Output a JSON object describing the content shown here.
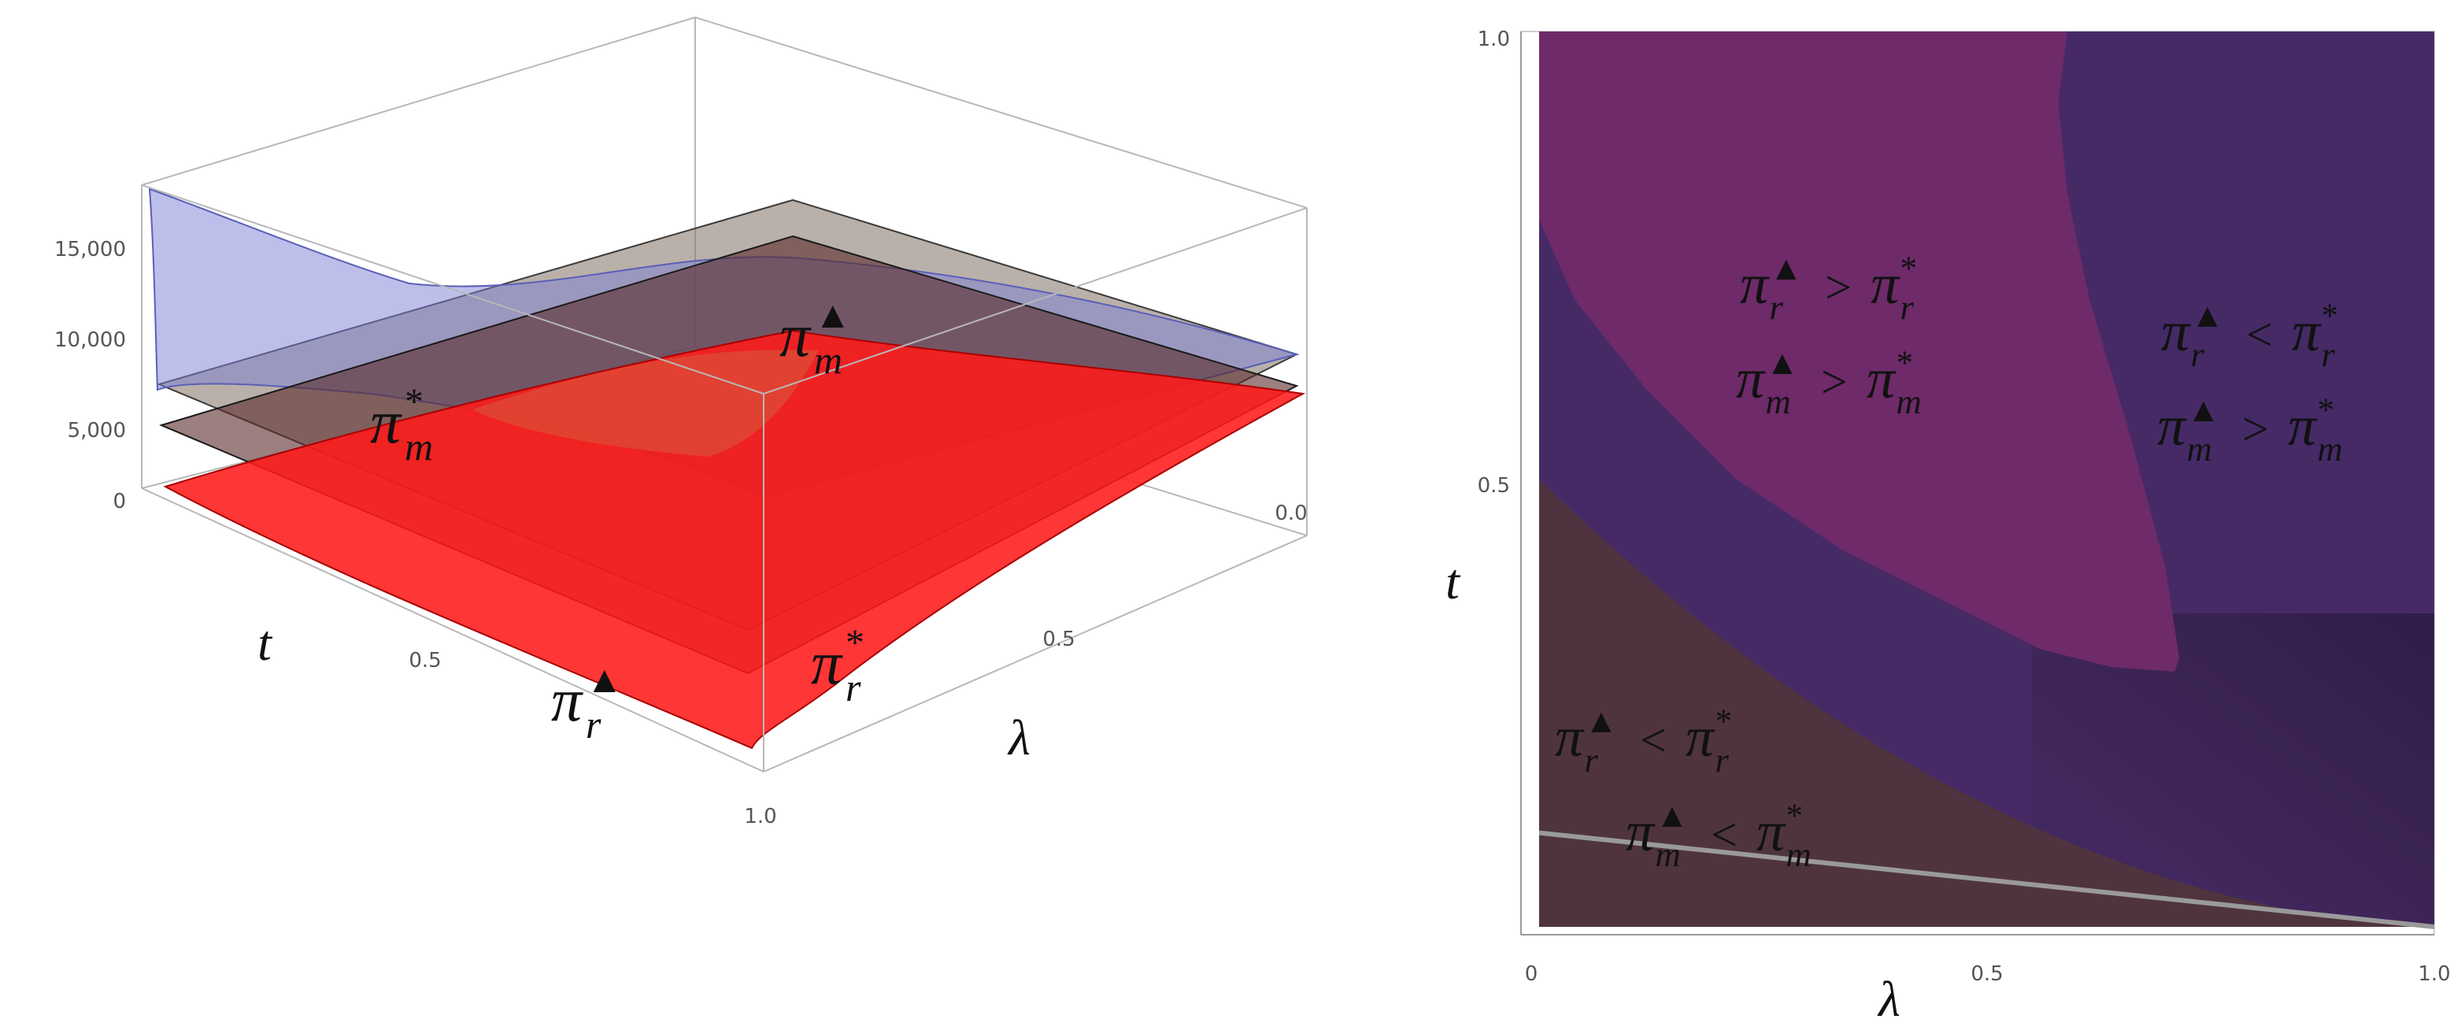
{
  "chart_data": [
    {
      "type": "3d-surface",
      "z_ticks": [
        "0",
        "5,000",
        "10,000",
        "15,000"
      ],
      "t_ticks": [
        "0.5"
      ],
      "lambda_ticks": [
        "0.0",
        "0.5",
        "1.0"
      ],
      "xlabel": "t",
      "ylabel": "λ",
      "surfaces": [
        {
          "name": "π_m^▲",
          "label_base": "π",
          "label_sub": "m",
          "label_sup": "▲",
          "color": "#7b7fd6"
        },
        {
          "name": "π_m^*",
          "label_base": "π",
          "label_sub": "m",
          "label_sup": "*",
          "color": "#7f6f62"
        },
        {
          "name": "π_r^*",
          "label_base": "π",
          "label_sub": "r",
          "label_sup": "*",
          "color": "#5a2a2a"
        },
        {
          "name": "π_r^▲",
          "label_base": "π",
          "label_sub": "r",
          "label_sup": "▲",
          "color": "#ff1a1a"
        }
      ]
    },
    {
      "type": "region",
      "xlabel": "λ",
      "ylabel": "t",
      "xlim": [
        0,
        1
      ],
      "ylim": [
        0,
        1
      ],
      "x_ticks": [
        "0",
        "0.5",
        "1.0"
      ],
      "y_ticks": [
        "0.5",
        "1.0"
      ],
      "colors": {
        "pink_region": "#6e2a69",
        "purple_region": "#452a66",
        "brown_region": "#4f343f",
        "boundary_line": "#9a9a9a"
      },
      "regions": [
        {
          "name": "top-left",
          "line1": {
            "a_base": "π",
            "a_sub": "r",
            "a_sup": "▲",
            "op": ">",
            "b_base": "π",
            "b_sub": "r",
            "b_sup": "*"
          },
          "line2": {
            "a_base": "π",
            "a_sub": "m",
            "a_sup": "▲",
            "op": ">",
            "b_base": "π",
            "b_sub": "m",
            "b_sup": "*"
          }
        },
        {
          "name": "right",
          "line1": {
            "a_base": "π",
            "a_sub": "r",
            "a_sup": "▲",
            "op": "<",
            "b_base": "π",
            "b_sub": "r",
            "b_sup": "*"
          },
          "line2": {
            "a_base": "π",
            "a_sub": "m",
            "a_sup": "▲",
            "op": ">",
            "b_base": "π",
            "b_sub": "m",
            "b_sup": "*"
          }
        },
        {
          "name": "bottom-left",
          "line1": {
            "a_base": "π",
            "a_sub": "r",
            "a_sup": "▲",
            "op": "<",
            "b_base": "π",
            "b_sub": "r",
            "b_sup": "*"
          },
          "line2": {
            "a_base": "π",
            "a_sub": "m",
            "a_sup": "▲",
            "op": "<",
            "b_base": "π",
            "b_sub": "m",
            "b_sup": "*"
          }
        }
      ]
    }
  ]
}
